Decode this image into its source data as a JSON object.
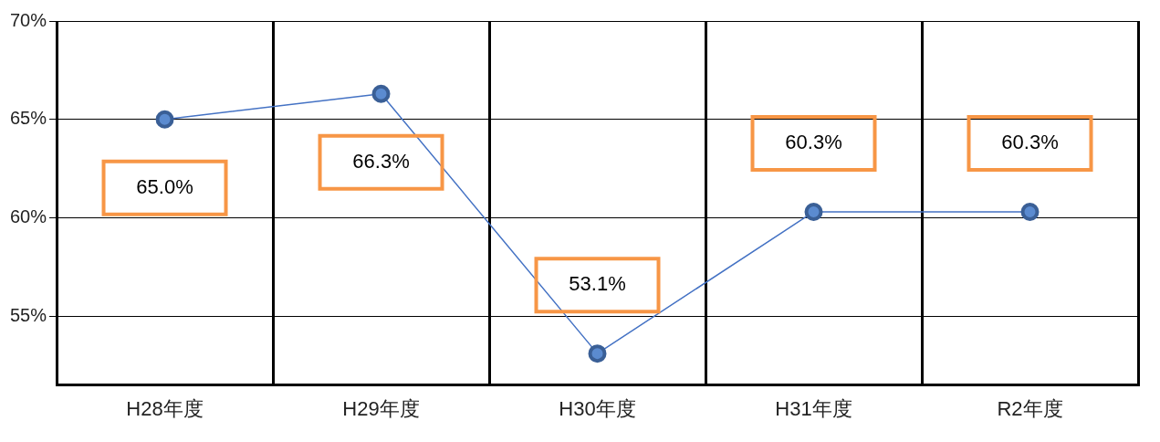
{
  "chart_data": {
    "type": "line",
    "categories": [
      "H28年度",
      "H29年度",
      "H30年度",
      "H31年度",
      "R2年度"
    ],
    "series": [
      {
        "color": "#4472c4",
        "values": [
          65.0,
          66.3,
          53.1,
          60.3,
          60.3
        ],
        "value_labels": [
          "65.0%",
          "66.3%",
          "53.1%",
          "60.3%",
          "60.3%"
        ]
      }
    ],
    "ylim": [
      51.5,
      70
    ],
    "yticks": [
      {
        "value": 55,
        "label": "55%"
      },
      {
        "value": 60,
        "label": "60%"
      },
      {
        "value": 65,
        "label": "65%"
      },
      {
        "value": 70,
        "label": "70%"
      }
    ],
    "grid": true,
    "legend": false,
    "marker": "circle",
    "line_style": "solid"
  }
}
